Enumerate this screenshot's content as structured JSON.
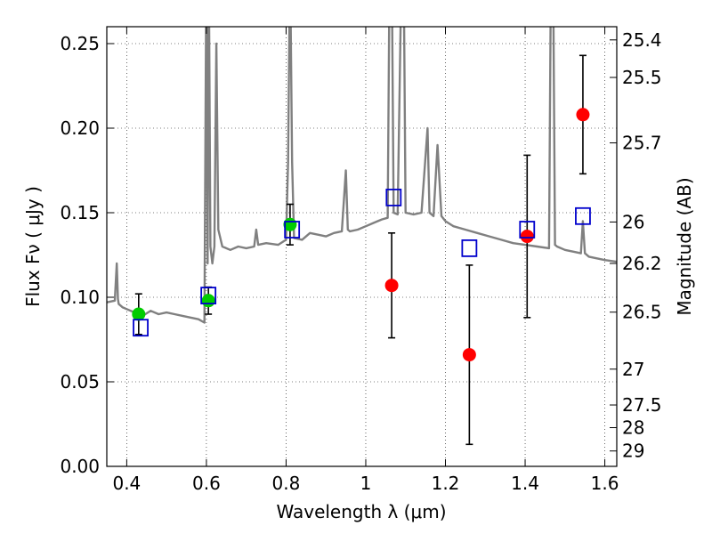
{
  "chart_data": {
    "type": "scatter",
    "xlabel": "Wavelength  λ (μm)",
    "ylabel": "Flux  Fν  ( μJy )",
    "y2label": "Magnitude (AB)",
    "xlim": [
      0.35,
      1.63
    ],
    "ylim": [
      0.0,
      0.26
    ],
    "grid": true,
    "x_ticks": [
      {
        "value": 0.4,
        "label": "0.4"
      },
      {
        "value": 0.6,
        "label": "0.6"
      },
      {
        "value": 0.8,
        "label": "0.8"
      },
      {
        "value": 1.0,
        "label": "1"
      },
      {
        "value": 1.2,
        "label": "1.2"
      },
      {
        "value": 1.4,
        "label": "1.4"
      },
      {
        "value": 1.6,
        "label": "1.6"
      }
    ],
    "y_ticks": [
      {
        "value": 0.0,
        "label": "0.00"
      },
      {
        "value": 0.05,
        "label": "0.05"
      },
      {
        "value": 0.1,
        "label": "0.10"
      },
      {
        "value": 0.15,
        "label": "0.15"
      },
      {
        "value": 0.2,
        "label": "0.20"
      },
      {
        "value": 0.25,
        "label": "0.25"
      }
    ],
    "y2_ticks": [
      {
        "flux": 0.2522,
        "label": "25.4"
      },
      {
        "flux": 0.23,
        "label": "25.5"
      },
      {
        "flux": 0.1913,
        "label": "25.7"
      },
      {
        "flux": 0.1445,
        "label": "26"
      },
      {
        "flux": 0.12,
        "label": "26.2"
      },
      {
        "flux": 0.0912,
        "label": "26.5"
      },
      {
        "flux": 0.0575,
        "label": "27"
      },
      {
        "flux": 0.0363,
        "label": "27.5"
      },
      {
        "flux": 0.0229,
        "label": "28"
      },
      {
        "flux": 0.0091,
        "label": "29"
      }
    ],
    "colors": {
      "template": "#808080",
      "green_points": "#00cc00",
      "red_points": "#ff0000",
      "model_boxes": "#0000cc",
      "errorbar": "#000000"
    },
    "model_template": {
      "x": [
        0.35,
        0.37,
        0.375,
        0.378,
        0.38,
        0.39,
        0.4,
        0.42,
        0.44,
        0.46,
        0.48,
        0.5,
        0.52,
        0.54,
        0.56,
        0.58,
        0.595,
        0.6,
        0.603,
        0.606,
        0.61,
        0.615,
        0.62,
        0.625,
        0.63,
        0.64,
        0.66,
        0.68,
        0.7,
        0.72,
        0.725,
        0.73,
        0.75,
        0.78,
        0.8,
        0.805,
        0.81,
        0.815,
        0.82,
        0.84,
        0.86,
        0.88,
        0.9,
        0.92,
        0.94,
        0.95,
        0.955,
        0.96,
        0.98,
        1.0,
        1.02,
        1.04,
        1.055,
        1.06,
        1.065,
        1.07,
        1.08,
        1.09,
        1.095,
        1.1,
        1.12,
        1.14,
        1.155,
        1.16,
        1.17,
        1.18,
        1.19,
        1.2,
        1.22,
        1.25,
        1.28,
        1.31,
        1.34,
        1.37,
        1.4,
        1.43,
        1.46,
        1.465,
        1.47,
        1.475,
        1.48,
        1.5,
        1.52,
        1.54,
        1.545,
        1.55,
        1.56,
        1.58,
        1.6,
        1.63
      ],
      "y": [
        0.097,
        0.098,
        0.12,
        0.099,
        0.096,
        0.094,
        0.093,
        0.091,
        0.089,
        0.092,
        0.09,
        0.091,
        0.09,
        0.089,
        0.088,
        0.087,
        0.085,
        0.3,
        0.12,
        0.3,
        0.13,
        0.12,
        0.13,
        0.25,
        0.14,
        0.13,
        0.128,
        0.13,
        0.129,
        0.13,
        0.14,
        0.131,
        0.132,
        0.131,
        0.134,
        0.18,
        0.3,
        0.18,
        0.135,
        0.134,
        0.138,
        0.137,
        0.136,
        0.138,
        0.139,
        0.175,
        0.14,
        0.139,
        0.14,
        0.142,
        0.144,
        0.146,
        0.147,
        0.3,
        0.3,
        0.15,
        0.149,
        0.3,
        0.3,
        0.15,
        0.149,
        0.15,
        0.2,
        0.15,
        0.148,
        0.19,
        0.148,
        0.145,
        0.142,
        0.14,
        0.138,
        0.136,
        0.134,
        0.132,
        0.131,
        0.13,
        0.129,
        0.3,
        0.3,
        0.131,
        0.13,
        0.128,
        0.127,
        0.126,
        0.145,
        0.126,
        0.124,
        0.123,
        0.122,
        0.121
      ]
    },
    "series": [
      {
        "marker": "circle",
        "color": "#00cc00",
        "points": [
          {
            "x": 0.43,
            "y": 0.09,
            "err": 0.012
          },
          {
            "x": 0.605,
            "y": 0.098,
            "err": 0.008
          },
          {
            "x": 0.81,
            "y": 0.143,
            "err": 0.012
          }
        ]
      },
      {
        "marker": "circle",
        "color": "#ff0000",
        "points": [
          {
            "x": 1.065,
            "y": 0.107,
            "err": 0.031
          },
          {
            "x": 1.26,
            "y": 0.066,
            "err": 0.053
          },
          {
            "x": 1.405,
            "y": 0.136,
            "err": 0.048
          },
          {
            "x": 1.545,
            "y": 0.208,
            "err": 0.035
          }
        ]
      },
      {
        "marker": "open-square",
        "color": "#0000cc",
        "points": [
          {
            "x": 0.435,
            "y": 0.082
          },
          {
            "x": 0.605,
            "y": 0.101
          },
          {
            "x": 0.815,
            "y": 0.14
          },
          {
            "x": 1.07,
            "y": 0.159
          },
          {
            "x": 1.26,
            "y": 0.129
          },
          {
            "x": 1.405,
            "y": 0.14
          },
          {
            "x": 1.545,
            "y": 0.148
          }
        ]
      }
    ]
  }
}
